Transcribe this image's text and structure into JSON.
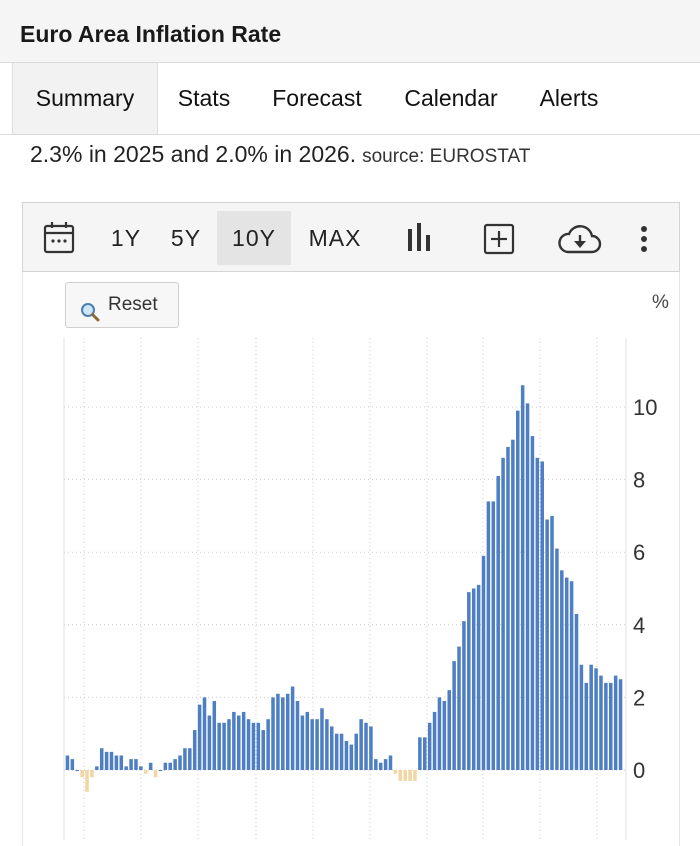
{
  "header": {
    "title": "Euro Area Inflation Rate"
  },
  "tabs": [
    {
      "label": "Summary"
    },
    {
      "label": "Stats"
    },
    {
      "label": "Forecast"
    },
    {
      "label": "Calendar"
    },
    {
      "label": "Alerts"
    }
  ],
  "summary": {
    "text": "2.3% in 2025 and 2.0% in 2026.",
    "source": "source: EUROSTAT"
  },
  "toolbar": {
    "ranges": [
      "1Y",
      "5Y",
      "10Y",
      "MAX"
    ],
    "active_range": "10Y",
    "icons": [
      "calendar-icon",
      "bar-chart-icon",
      "add-box-icon",
      "cloud-download-icon",
      "more-vert-icon"
    ]
  },
  "chart_controls": {
    "reset_label": "Reset",
    "unit_label": "%"
  },
  "colors": {
    "positive": "#4f7fc3",
    "negative": "#f1d6a3",
    "grid": "#cccccc"
  },
  "chart_data": {
    "type": "bar",
    "ylabel": "%",
    "ylim": [
      -2,
      12
    ],
    "yticks": [
      0,
      2,
      4,
      6,
      8,
      10
    ],
    "grid": true,
    "values": [
      0.4,
      0.3,
      0.0,
      -0.2,
      -0.6,
      -0.2,
      0.1,
      0.6,
      0.5,
      0.5,
      0.4,
      0.4,
      0.1,
      0.3,
      0.3,
      0.1,
      -0.1,
      0.2,
      -0.2,
      0.0,
      0.2,
      0.2,
      0.3,
      0.4,
      0.6,
      0.6,
      1.1,
      1.8,
      2.0,
      1.5,
      1.9,
      1.3,
      1.3,
      1.4,
      1.6,
      1.5,
      1.6,
      1.4,
      1.3,
      1.3,
      1.1,
      1.4,
      2.0,
      2.1,
      2.0,
      2.1,
      2.3,
      1.9,
      1.5,
      1.6,
      1.4,
      1.4,
      1.7,
      1.4,
      1.2,
      1.0,
      1.0,
      0.8,
      0.7,
      1.0,
      1.4,
      1.3,
      1.2,
      0.3,
      0.2,
      0.3,
      0.4,
      -0.1,
      -0.3,
      -0.3,
      -0.3,
      -0.3,
      0.9,
      0.9,
      1.3,
      1.6,
      2.0,
      1.9,
      2.2,
      3.0,
      3.4,
      4.1,
      4.9,
      5.0,
      5.1,
      5.9,
      7.4,
      7.4,
      8.1,
      8.6,
      8.9,
      9.1,
      9.9,
      10.6,
      10.1,
      9.2,
      8.6,
      8.5,
      6.9,
      7.0,
      6.1,
      5.5,
      5.3,
      5.2,
      4.3,
      2.9,
      2.4,
      2.9,
      2.8,
      2.6,
      2.4,
      2.4,
      2.6,
      2.5
    ]
  }
}
